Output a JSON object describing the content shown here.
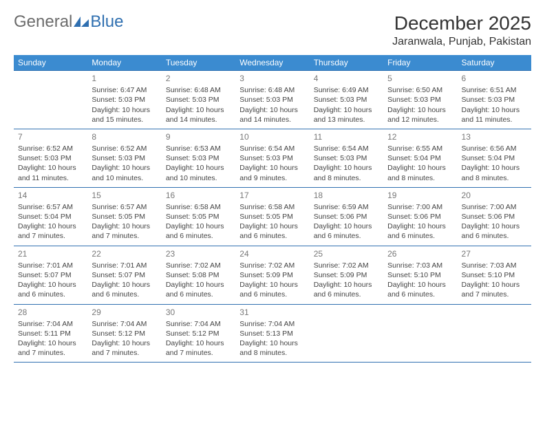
{
  "logo": {
    "word1": "General",
    "word2": "Blue",
    "word1_color": "#6b6b6b",
    "word2_color": "#2f6fb0"
  },
  "title": "December 2025",
  "location": "Jaranwala, Punjab, Pakistan",
  "colors": {
    "header_bg": "#3b8bd0",
    "header_text": "#ffffff",
    "rule": "#2f6fb0",
    "body_text": "#444444",
    "daynum": "#777777",
    "page_bg": "#ffffff"
  },
  "typography": {
    "title_fontsize": 28,
    "location_fontsize": 16,
    "dayhead_fontsize": 12,
    "daynum_fontsize": 12,
    "cell_fontsize": 10.5
  },
  "day_headers": [
    "Sunday",
    "Monday",
    "Tuesday",
    "Wednesday",
    "Thursday",
    "Friday",
    "Saturday"
  ],
  "weeks": [
    [
      null,
      {
        "n": "1",
        "sr": "Sunrise: 6:47 AM",
        "ss": "Sunset: 5:03 PM",
        "dl": "Daylight: 10 hours and 15 minutes."
      },
      {
        "n": "2",
        "sr": "Sunrise: 6:48 AM",
        "ss": "Sunset: 5:03 PM",
        "dl": "Daylight: 10 hours and 14 minutes."
      },
      {
        "n": "3",
        "sr": "Sunrise: 6:48 AM",
        "ss": "Sunset: 5:03 PM",
        "dl": "Daylight: 10 hours and 14 minutes."
      },
      {
        "n": "4",
        "sr": "Sunrise: 6:49 AM",
        "ss": "Sunset: 5:03 PM",
        "dl": "Daylight: 10 hours and 13 minutes."
      },
      {
        "n": "5",
        "sr": "Sunrise: 6:50 AM",
        "ss": "Sunset: 5:03 PM",
        "dl": "Daylight: 10 hours and 12 minutes."
      },
      {
        "n": "6",
        "sr": "Sunrise: 6:51 AM",
        "ss": "Sunset: 5:03 PM",
        "dl": "Daylight: 10 hours and 11 minutes."
      }
    ],
    [
      {
        "n": "7",
        "sr": "Sunrise: 6:52 AM",
        "ss": "Sunset: 5:03 PM",
        "dl": "Daylight: 10 hours and 11 minutes."
      },
      {
        "n": "8",
        "sr": "Sunrise: 6:52 AM",
        "ss": "Sunset: 5:03 PM",
        "dl": "Daylight: 10 hours and 10 minutes."
      },
      {
        "n": "9",
        "sr": "Sunrise: 6:53 AM",
        "ss": "Sunset: 5:03 PM",
        "dl": "Daylight: 10 hours and 10 minutes."
      },
      {
        "n": "10",
        "sr": "Sunrise: 6:54 AM",
        "ss": "Sunset: 5:03 PM",
        "dl": "Daylight: 10 hours and 9 minutes."
      },
      {
        "n": "11",
        "sr": "Sunrise: 6:54 AM",
        "ss": "Sunset: 5:03 PM",
        "dl": "Daylight: 10 hours and 8 minutes."
      },
      {
        "n": "12",
        "sr": "Sunrise: 6:55 AM",
        "ss": "Sunset: 5:04 PM",
        "dl": "Daylight: 10 hours and 8 minutes."
      },
      {
        "n": "13",
        "sr": "Sunrise: 6:56 AM",
        "ss": "Sunset: 5:04 PM",
        "dl": "Daylight: 10 hours and 8 minutes."
      }
    ],
    [
      {
        "n": "14",
        "sr": "Sunrise: 6:57 AM",
        "ss": "Sunset: 5:04 PM",
        "dl": "Daylight: 10 hours and 7 minutes."
      },
      {
        "n": "15",
        "sr": "Sunrise: 6:57 AM",
        "ss": "Sunset: 5:05 PM",
        "dl": "Daylight: 10 hours and 7 minutes."
      },
      {
        "n": "16",
        "sr": "Sunrise: 6:58 AM",
        "ss": "Sunset: 5:05 PM",
        "dl": "Daylight: 10 hours and 6 minutes."
      },
      {
        "n": "17",
        "sr": "Sunrise: 6:58 AM",
        "ss": "Sunset: 5:05 PM",
        "dl": "Daylight: 10 hours and 6 minutes."
      },
      {
        "n": "18",
        "sr": "Sunrise: 6:59 AM",
        "ss": "Sunset: 5:06 PM",
        "dl": "Daylight: 10 hours and 6 minutes."
      },
      {
        "n": "19",
        "sr": "Sunrise: 7:00 AM",
        "ss": "Sunset: 5:06 PM",
        "dl": "Daylight: 10 hours and 6 minutes."
      },
      {
        "n": "20",
        "sr": "Sunrise: 7:00 AM",
        "ss": "Sunset: 5:06 PM",
        "dl": "Daylight: 10 hours and 6 minutes."
      }
    ],
    [
      {
        "n": "21",
        "sr": "Sunrise: 7:01 AM",
        "ss": "Sunset: 5:07 PM",
        "dl": "Daylight: 10 hours and 6 minutes."
      },
      {
        "n": "22",
        "sr": "Sunrise: 7:01 AM",
        "ss": "Sunset: 5:07 PM",
        "dl": "Daylight: 10 hours and 6 minutes."
      },
      {
        "n": "23",
        "sr": "Sunrise: 7:02 AM",
        "ss": "Sunset: 5:08 PM",
        "dl": "Daylight: 10 hours and 6 minutes."
      },
      {
        "n": "24",
        "sr": "Sunrise: 7:02 AM",
        "ss": "Sunset: 5:09 PM",
        "dl": "Daylight: 10 hours and 6 minutes."
      },
      {
        "n": "25",
        "sr": "Sunrise: 7:02 AM",
        "ss": "Sunset: 5:09 PM",
        "dl": "Daylight: 10 hours and 6 minutes."
      },
      {
        "n": "26",
        "sr": "Sunrise: 7:03 AM",
        "ss": "Sunset: 5:10 PM",
        "dl": "Daylight: 10 hours and 6 minutes."
      },
      {
        "n": "27",
        "sr": "Sunrise: 7:03 AM",
        "ss": "Sunset: 5:10 PM",
        "dl": "Daylight: 10 hours and 7 minutes."
      }
    ],
    [
      {
        "n": "28",
        "sr": "Sunrise: 7:04 AM",
        "ss": "Sunset: 5:11 PM",
        "dl": "Daylight: 10 hours and 7 minutes."
      },
      {
        "n": "29",
        "sr": "Sunrise: 7:04 AM",
        "ss": "Sunset: 5:12 PM",
        "dl": "Daylight: 10 hours and 7 minutes."
      },
      {
        "n": "30",
        "sr": "Sunrise: 7:04 AM",
        "ss": "Sunset: 5:12 PM",
        "dl": "Daylight: 10 hours and 7 minutes."
      },
      {
        "n": "31",
        "sr": "Sunrise: 7:04 AM",
        "ss": "Sunset: 5:13 PM",
        "dl": "Daylight: 10 hours and 8 minutes."
      },
      null,
      null,
      null
    ]
  ]
}
